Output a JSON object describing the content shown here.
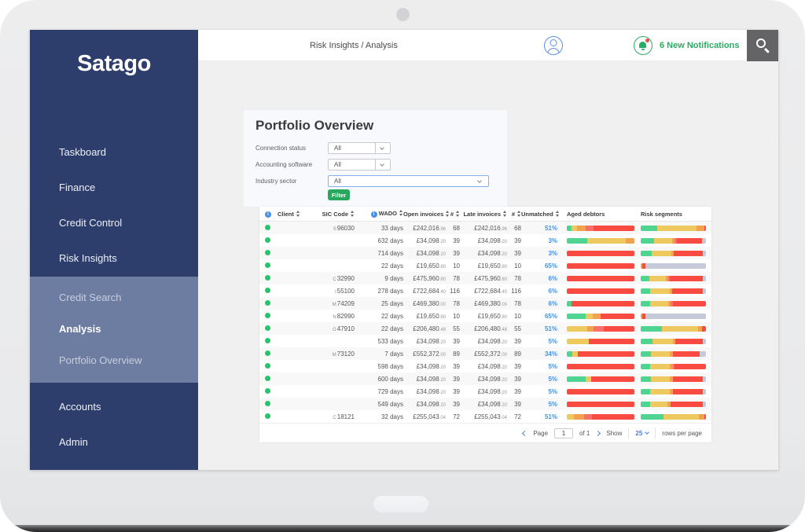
{
  "sidebar": {
    "logo": "Satago",
    "items_top": [
      {
        "key": "taskboard",
        "label": "Taskboard"
      },
      {
        "key": "finance",
        "label": "Finance"
      },
      {
        "key": "credit-control",
        "label": "Credit Control"
      },
      {
        "key": "risk-insights",
        "label": "Risk Insights"
      }
    ],
    "submenu": [
      {
        "key": "credit-search",
        "label": "Credit Search",
        "active": false
      },
      {
        "key": "analysis",
        "label": "Analysis",
        "active": true
      },
      {
        "key": "portfolio-overview",
        "label": "Portfolio Overview",
        "active": false
      }
    ],
    "items_bottom": [
      {
        "key": "accounts",
        "label": "Accounts"
      },
      {
        "key": "admin",
        "label": "Admin"
      }
    ]
  },
  "header": {
    "breadcrumb": "Risk Insights / Analysis",
    "notifications": "6 New Notifications"
  },
  "filters": {
    "title": "Portfolio Overview",
    "rows": [
      {
        "key": "connection-status",
        "label": "Connection status",
        "value": "All",
        "wide": false
      },
      {
        "key": "accounting-software",
        "label": "Accounting software",
        "value": "All",
        "wide": false
      },
      {
        "key": "industry-sector",
        "label": "Industry sector",
        "value": "All",
        "wide": true
      }
    ],
    "button": "Filter"
  },
  "colors": {
    "g": "#50d492",
    "y": "#eec95e",
    "o": "#f0a24f",
    "s": "#f87168",
    "r": "#fa4b42",
    "x": "#c4cad7",
    "accent_green": "#27ae60",
    "accent_blue": "#4a90e2",
    "sidebar_blue": "#2d3e6d"
  },
  "table": {
    "columns": [
      {
        "label": "Client",
        "sortable": true
      },
      {
        "label": "SIC Code",
        "sortable": true
      },
      {
        "label": "WADO",
        "sortable": true,
        "info": true
      },
      {
        "label": "Open invoices",
        "sortable": true
      },
      {
        "label": "#",
        "sortable": true
      },
      {
        "label": "Late invoices",
        "sortable": true
      },
      {
        "label": "#",
        "sortable": true
      },
      {
        "label": "Unmatched",
        "sortable": true
      },
      {
        "label": "Aged debtors",
        "sortable": false
      },
      {
        "label": "Risk segments",
        "sortable": false
      }
    ],
    "rows": [
      {
        "client": "",
        "sic": "S 96030",
        "wado": "33 days",
        "open": "£242,016.96",
        "open_count": "68",
        "late": "£242,016.96",
        "late_count": "68",
        "unmatched": "51%",
        "aged": [
          [
            "g",
            7
          ],
          [
            "y",
            8
          ],
          [
            "o",
            13
          ],
          [
            "s",
            12
          ],
          [
            "r",
            60
          ]
        ],
        "risk": [
          [
            "g",
            25
          ],
          [
            "y",
            61
          ],
          [
            "o",
            11
          ],
          [
            "r",
            3
          ]
        ]
      },
      {
        "client": "",
        "sic": "",
        "wado": "632 days",
        "open": "£34,098.20",
        "open_count": "39",
        "late": "£34,098.20",
        "late_count": "39",
        "unmatched": "3%",
        "aged": [
          [
            "g",
            30
          ],
          [
            "y",
            57
          ],
          [
            "o",
            13
          ]
        ],
        "risk": [
          [
            "g",
            20
          ],
          [
            "y",
            28
          ],
          [
            "o",
            4
          ],
          [
            "s",
            3
          ],
          [
            "r",
            39
          ],
          [
            "x",
            6
          ]
        ]
      },
      {
        "client": "",
        "sic": "",
        "wado": "714 days",
        "open": "£34,098.20",
        "open_count": "39",
        "late": "£34,098.20",
        "late_count": "39",
        "unmatched": "3%",
        "aged": [
          [
            "r",
            100
          ]
        ],
        "risk": [
          [
            "g",
            17
          ],
          [
            "y",
            30
          ],
          [
            "o",
            4
          ],
          [
            "r",
            44
          ],
          [
            "x",
            5
          ]
        ]
      },
      {
        "client": "",
        "sic": "",
        "wado": "22 days",
        "open": "£19,650.80",
        "open_count": "10",
        "late": "£19,650.80",
        "late_count": "10",
        "unmatched": "65%",
        "aged": [
          [
            "r",
            100
          ]
        ],
        "risk": [
          [
            "o",
            3
          ],
          [
            "r",
            4
          ],
          [
            "x",
            93
          ]
        ]
      },
      {
        "client": "",
        "sic": "C 32990",
        "wado": "9 days",
        "open": "£475,960.80",
        "open_count": "78",
        "late": "£475,960.80",
        "late_count": "78",
        "unmatched": "6%",
        "aged": [
          [
            "r",
            100
          ]
        ],
        "risk": [
          [
            "g",
            13
          ],
          [
            "y",
            25
          ],
          [
            "o",
            4
          ],
          [
            "s",
            3
          ],
          [
            "r",
            50
          ],
          [
            "x",
            5
          ]
        ]
      },
      {
        "client": "",
        "sic": "I 55100",
        "wado": "278 days",
        "open": "£722,684.40",
        "open_count": "116",
        "late": "£722,684.40",
        "late_count": "116",
        "unmatched": "6%",
        "aged": [
          [
            "r",
            100
          ]
        ],
        "risk": [
          [
            "g",
            15
          ],
          [
            "y",
            29
          ],
          [
            "o",
            4
          ],
          [
            "r",
            47
          ],
          [
            "x",
            5
          ]
        ]
      },
      {
        "client": "",
        "sic": "M 74209",
        "wado": "25 days",
        "open": "£469,380.00",
        "open_count": "78",
        "late": "£469,380.00",
        "late_count": "78",
        "unmatched": "6%",
        "aged": [
          [
            "g",
            7
          ],
          [
            "r",
            93
          ]
        ],
        "risk": [
          [
            "g",
            15
          ],
          [
            "y",
            27
          ],
          [
            "o",
            4
          ],
          [
            "s",
            3
          ],
          [
            "r",
            51
          ]
        ]
      },
      {
        "client": "",
        "sic": "N 82990",
        "wado": "22 days",
        "open": "£19,650.80",
        "open_count": "10",
        "late": "£19,650.80",
        "late_count": "10",
        "unmatched": "65%",
        "aged": [
          [
            "g",
            28
          ],
          [
            "y",
            10
          ],
          [
            "o",
            12
          ],
          [
            "r",
            50
          ]
        ],
        "risk": [
          [
            "o",
            3
          ],
          [
            "r",
            4
          ],
          [
            "x",
            93
          ]
        ]
      },
      {
        "client": "",
        "sic": "G 47910",
        "wado": "22 days",
        "open": "£206,480.48",
        "open_count": "55",
        "late": "£206,480.48",
        "late_count": "55",
        "unmatched": "51%",
        "aged": [
          [
            "y",
            30
          ],
          [
            "o",
            10
          ],
          [
            "s",
            15
          ],
          [
            "r",
            45
          ]
        ],
        "risk": [
          [
            "g",
            32
          ],
          [
            "y",
            56
          ],
          [
            "o",
            6
          ],
          [
            "r",
            6
          ]
        ]
      },
      {
        "client": "",
        "sic": "",
        "wado": "533 days",
        "open": "£34,098.20",
        "open_count": "39",
        "late": "£34,098.20",
        "late_count": "39",
        "unmatched": "5%",
        "aged": [
          [
            "y",
            32
          ],
          [
            "r",
            68
          ]
        ],
        "risk": [
          [
            "g",
            18
          ],
          [
            "y",
            31
          ],
          [
            "o",
            4
          ],
          [
            "r",
            42
          ],
          [
            "x",
            5
          ]
        ]
      },
      {
        "client": "",
        "sic": "M 73120",
        "wado": "7 days",
        "open": "£552,372.00",
        "open_count": "89",
        "late": "£552,372.00",
        "late_count": "89",
        "unmatched": "34%",
        "aged": [
          [
            "g",
            8
          ],
          [
            "y",
            8
          ],
          [
            "r",
            84
          ]
        ],
        "risk": [
          [
            "g",
            16
          ],
          [
            "y",
            29
          ],
          [
            "o",
            4
          ],
          [
            "r",
            41
          ],
          [
            "x",
            10
          ]
        ]
      },
      {
        "client": "",
        "sic": "",
        "wado": "598 days",
        "open": "£34,098.20",
        "open_count": "39",
        "late": "£34,098.20",
        "late_count": "39",
        "unmatched": "5%",
        "aged": [
          [
            "r",
            100
          ]
        ],
        "risk": [
          [
            "g",
            15
          ],
          [
            "y",
            29
          ],
          [
            "o",
            5
          ],
          [
            "s",
            3
          ],
          [
            "r",
            48
          ]
        ]
      },
      {
        "client": "",
        "sic": "",
        "wado": "600 days",
        "open": "£34,098.20",
        "open_count": "39",
        "late": "£34,098.20",
        "late_count": "39",
        "unmatched": "5%",
        "aged": [
          [
            "g",
            28
          ],
          [
            "y",
            8
          ],
          [
            "r",
            64
          ]
        ],
        "risk": [
          [
            "g",
            16
          ],
          [
            "y",
            29
          ],
          [
            "o",
            4
          ],
          [
            "r",
            46
          ],
          [
            "x",
            5
          ]
        ]
      },
      {
        "client": "",
        "sic": "",
        "wado": "729 days",
        "open": "£34,098.20",
        "open_count": "39",
        "late": "£34,098.20",
        "late_count": "39",
        "unmatched": "5%",
        "aged": [
          [
            "r",
            100
          ]
        ],
        "risk": [
          [
            "g",
            15
          ],
          [
            "y",
            29
          ],
          [
            "o",
            5
          ],
          [
            "r",
            46
          ],
          [
            "x",
            5
          ]
        ]
      },
      {
        "client": "",
        "sic": "",
        "wado": "549 days",
        "open": "£34,098.20",
        "open_count": "39",
        "late": "£34,098.20",
        "late_count": "39",
        "unmatched": "5%",
        "aged": [
          [
            "r",
            100
          ]
        ],
        "risk": [
          [
            "g",
            15
          ],
          [
            "y",
            26
          ],
          [
            "o",
            5
          ],
          [
            "r",
            49
          ],
          [
            "x",
            5
          ]
        ]
      },
      {
        "client": "",
        "sic": "C 18121",
        "wado": "32 days",
        "open": "£255,043.04",
        "open_count": "72",
        "late": "£255,043.04",
        "late_count": "72",
        "unmatched": "51%",
        "aged": [
          [
            "y",
            10
          ],
          [
            "o",
            15
          ],
          [
            "s",
            12
          ],
          [
            "r",
            63
          ]
        ],
        "risk": [
          [
            "g",
            35
          ],
          [
            "y",
            54
          ],
          [
            "o",
            8
          ],
          [
            "r",
            3
          ]
        ]
      }
    ]
  },
  "pagination": {
    "page_label": "Page",
    "page_value": "1",
    "of_label": "of 1",
    "show_label": "Show",
    "page_size": "25",
    "rows_label": "rows per page"
  }
}
